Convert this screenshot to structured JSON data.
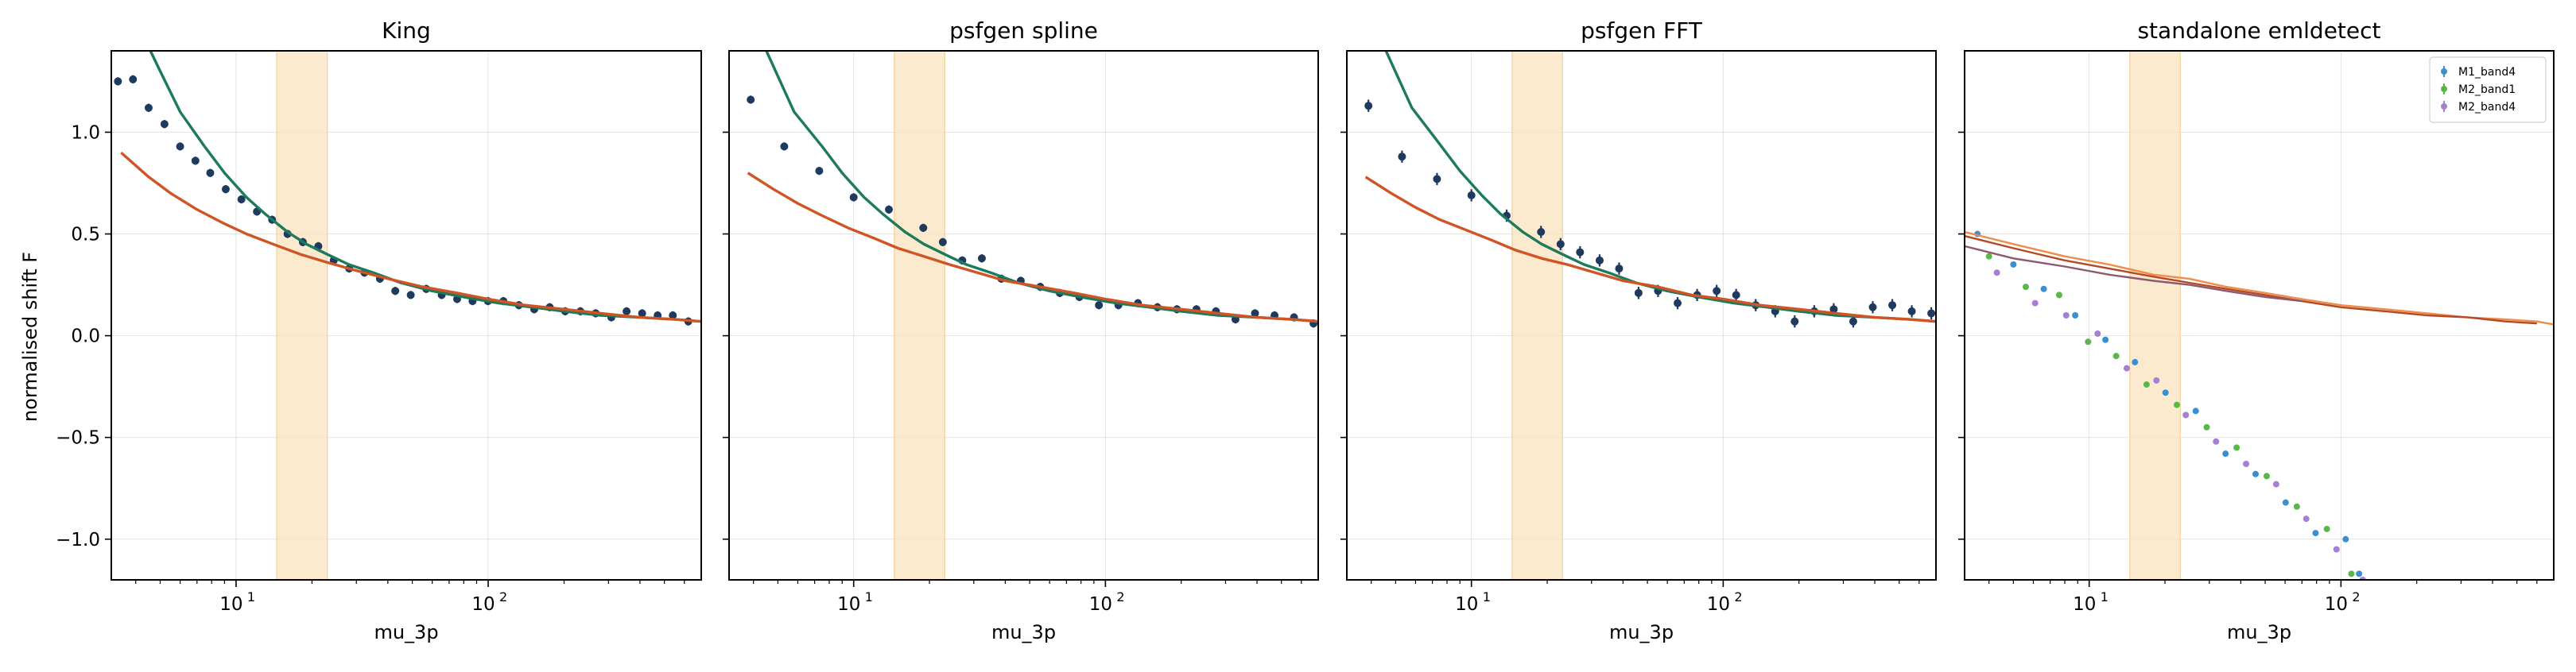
{
  "figure": {
    "ylabel": "normalised shift F",
    "colors": {
      "points": "#1f3a5f",
      "green_curve": "#1d7a5a",
      "orange_curve": "#d05424",
      "band": "#fbe3bf",
      "series_blue": "#3a8fd0",
      "series_green": "#5ab84a",
      "series_purple": "#a57fd1",
      "curve_a": "#f08c4a",
      "curve_b": "#b24a28",
      "curve_c": "#8c5a6e"
    }
  },
  "chart_data": [
    {
      "type": "scatter",
      "title": "King",
      "xlabel": "mu_3p",
      "ylabel": "normalised shift F",
      "xscale": "log",
      "xlim": [
        3.2,
        700
      ],
      "ylim": [
        -1.2,
        1.4
      ],
      "xticks": [
        {
          "value": 10,
          "label": "10",
          "sup": "1"
        },
        {
          "value": 100,
          "label": "10",
          "sup": "2"
        }
      ],
      "yticks": [
        -1.0,
        -0.5,
        0.0,
        0.5,
        1.0
      ],
      "ytick_labels": [
        "−1.0",
        "−0.5",
        "0.0",
        "0.5",
        "1.0"
      ],
      "grid": true,
      "band": [
        14.5,
        23
      ],
      "series": [
        {
          "kind": "points",
          "color": "points",
          "x": [
            3.4,
            3.9,
            4.5,
            5.2,
            6.0,
            6.9,
            7.9,
            9.1,
            10.5,
            12.1,
            13.9,
            16.0,
            18.4,
            21.2,
            24.4,
            28.1,
            32.3,
            37.2,
            42.8,
            49.3,
            56.8,
            65.4,
            75.3,
            86.7,
            99.8,
            114.9,
            132.3,
            152.3,
            175.4,
            202,
            232,
            267,
            308,
            354,
            408,
            470,
            540,
            622
          ],
          "y": [
            1.25,
            1.26,
            1.12,
            1.04,
            0.93,
            0.86,
            0.8,
            0.72,
            0.67,
            0.61,
            0.57,
            0.5,
            0.46,
            0.44,
            0.37,
            0.33,
            0.31,
            0.28,
            0.22,
            0.2,
            0.23,
            0.2,
            0.18,
            0.17,
            0.17,
            0.17,
            0.15,
            0.13,
            0.14,
            0.12,
            0.12,
            0.11,
            0.09,
            0.12,
            0.11,
            0.1,
            0.1,
            0.07
          ],
          "err": 0.02
        },
        {
          "kind": "line",
          "color": "green_curve",
          "x": [
            4.0,
            5.0,
            6.0,
            7.5,
            9.0,
            11,
            13,
            16,
            19,
            23,
            28,
            35,
            45,
            60,
            80,
            110,
            150,
            200,
            280,
            400,
            550,
            700
          ],
          "y": [
            1.55,
            1.3,
            1.1,
            0.93,
            0.8,
            0.68,
            0.6,
            0.51,
            0.45,
            0.4,
            0.35,
            0.31,
            0.26,
            0.22,
            0.19,
            0.16,
            0.14,
            0.12,
            0.1,
            0.09,
            0.08,
            0.07
          ]
        },
        {
          "kind": "line",
          "color": "orange_curve",
          "x": [
            3.5,
            4.5,
            5.5,
            7,
            9,
            11,
            14,
            18,
            23,
            30,
            40,
            55,
            75,
            100,
            140,
            200,
            280,
            400,
            550,
            700
          ],
          "y": [
            0.9,
            0.78,
            0.7,
            0.62,
            0.55,
            0.5,
            0.45,
            0.4,
            0.36,
            0.32,
            0.28,
            0.24,
            0.21,
            0.18,
            0.15,
            0.13,
            0.11,
            0.09,
            0.08,
            0.07
          ]
        }
      ]
    },
    {
      "type": "scatter",
      "title": "psfgen spline",
      "xlabel": "mu_3p",
      "xscale": "log",
      "xlim": [
        3.2,
        700
      ],
      "ylim": [
        -1.2,
        1.4
      ],
      "xticks": [
        {
          "value": 10,
          "label": "10",
          "sup": "1"
        },
        {
          "value": 100,
          "label": "10",
          "sup": "2"
        }
      ],
      "yticks": [
        -1.0,
        -0.5,
        0.0,
        0.5,
        1.0
      ],
      "grid": true,
      "band": [
        14.5,
        23
      ],
      "series": [
        {
          "kind": "points",
          "color": "points",
          "x": [
            3.9,
            5.3,
            7.3,
            10.0,
            13.8,
            18.9,
            22.6,
            27.0,
            32.3,
            38.6,
            46.1,
            55.1,
            65.9,
            78.8,
            94.2,
            112.6,
            134.6,
            160.9,
            192.3,
            229.9,
            274.8,
            328.5,
            392.7,
            469.4,
            561.1,
            670.7
          ],
          "y": [
            1.16,
            0.93,
            0.81,
            0.68,
            0.62,
            0.53,
            0.46,
            0.37,
            0.38,
            0.28,
            0.27,
            0.24,
            0.21,
            0.19,
            0.15,
            0.15,
            0.16,
            0.14,
            0.13,
            0.13,
            0.12,
            0.08,
            0.11,
            0.1,
            0.09,
            0.06
          ],
          "err": 0.02
        },
        {
          "kind": "line",
          "color": "green_curve",
          "x": [
            4.5,
            5.8,
            7.5,
            9.0,
            11,
            13,
            16,
            19,
            23,
            28,
            35,
            45,
            60,
            80,
            110,
            150,
            200,
            280,
            400,
            550,
            700
          ],
          "y": [
            1.4,
            1.1,
            0.93,
            0.8,
            0.68,
            0.6,
            0.51,
            0.45,
            0.4,
            0.35,
            0.31,
            0.26,
            0.22,
            0.19,
            0.16,
            0.14,
            0.12,
            0.1,
            0.09,
            0.08,
            0.07
          ]
        },
        {
          "kind": "line",
          "color": "orange_curve",
          "x": [
            3.8,
            4.8,
            6,
            7.5,
            9.5,
            12,
            15,
            19,
            24,
            31,
            40,
            55,
            75,
            100,
            140,
            200,
            280,
            400,
            550,
            700
          ],
          "y": [
            0.8,
            0.72,
            0.65,
            0.59,
            0.53,
            0.48,
            0.43,
            0.39,
            0.35,
            0.31,
            0.27,
            0.24,
            0.21,
            0.18,
            0.15,
            0.13,
            0.11,
            0.09,
            0.08,
            0.07
          ]
        }
      ]
    },
    {
      "type": "scatter",
      "title": "psfgen FFT",
      "xlabel": "mu_3p",
      "xscale": "log",
      "xlim": [
        3.2,
        700
      ],
      "ylim": [
        -1.2,
        1.4
      ],
      "xticks": [
        {
          "value": 10,
          "label": "10",
          "sup": "1"
        },
        {
          "value": 100,
          "label": "10",
          "sup": "2"
        }
      ],
      "yticks": [
        -1.0,
        -0.5,
        0.0,
        0.5,
        1.0
      ],
      "grid": true,
      "band": [
        14.5,
        23
      ],
      "series": [
        {
          "kind": "points",
          "color": "points",
          "x": [
            3.9,
            5.3,
            7.3,
            10.0,
            13.8,
            18.9,
            22.6,
            27.0,
            32.3,
            38.6,
            46.1,
            55.1,
            65.9,
            78.8,
            94.2,
            112.6,
            134.6,
            160.9,
            192.3,
            229.9,
            274.8,
            328.5,
            392.7,
            469.4,
            561.1,
            670.7
          ],
          "y": [
            1.13,
            0.88,
            0.77,
            0.69,
            0.59,
            0.51,
            0.45,
            0.41,
            0.37,
            0.33,
            0.21,
            0.22,
            0.16,
            0.2,
            0.22,
            0.2,
            0.15,
            0.12,
            0.07,
            0.12,
            0.13,
            0.07,
            0.14,
            0.15,
            0.12,
            0.11
          ],
          "err": 0.03
        },
        {
          "kind": "line",
          "color": "green_curve",
          "x": [
            4.5,
            5.8,
            7.5,
            9.0,
            11,
            13,
            16,
            19,
            23,
            28,
            35,
            45,
            60,
            80,
            110,
            150,
            200,
            280,
            400,
            550,
            700
          ],
          "y": [
            1.42,
            1.12,
            0.94,
            0.81,
            0.69,
            0.6,
            0.51,
            0.45,
            0.4,
            0.35,
            0.31,
            0.26,
            0.22,
            0.19,
            0.16,
            0.14,
            0.12,
            0.1,
            0.09,
            0.08,
            0.07
          ]
        },
        {
          "kind": "line",
          "color": "orange_curve",
          "x": [
            3.8,
            4.8,
            6,
            7.5,
            9.5,
            12,
            15,
            19,
            24,
            31,
            40,
            55,
            75,
            100,
            140,
            200,
            280,
            400,
            550,
            700
          ],
          "y": [
            0.78,
            0.7,
            0.63,
            0.57,
            0.52,
            0.47,
            0.42,
            0.38,
            0.35,
            0.31,
            0.27,
            0.24,
            0.2,
            0.18,
            0.15,
            0.13,
            0.11,
            0.09,
            0.08,
            0.07
          ]
        }
      ]
    },
    {
      "type": "scatter",
      "title": "standalone emldetect",
      "xlabel": "mu_3p",
      "xscale": "log",
      "xlim": [
        3.2,
        700
      ],
      "ylim": [
        -1.2,
        1.4
      ],
      "xticks": [
        {
          "value": 10,
          "label": "10",
          "sup": "1"
        },
        {
          "value": 100,
          "label": "10",
          "sup": "2"
        }
      ],
      "yticks": [
        -1.0,
        -0.5,
        0.0,
        0.5,
        1.0
      ],
      "grid": true,
      "band": [
        14.5,
        23
      ],
      "legend": "top-right",
      "series": [
        {
          "kind": "points",
          "name": "M1_band4",
          "color": "series_blue",
          "x": [
            3.6,
            5.0,
            6.6,
            8.8,
            11.6,
            15.2,
            20.1,
            26.5,
            34.8,
            45.8,
            60.3,
            79.3,
            104.4,
            118
          ],
          "y": [
            0.5,
            0.35,
            0.23,
            0.1,
            -0.02,
            -0.13,
            -0.28,
            -0.37,
            -0.58,
            -0.68,
            -0.82,
            -0.97,
            -1.0,
            -1.17
          ]
        },
        {
          "kind": "points",
          "name": "M2_band1",
          "color": "series_green",
          "x": [
            4.0,
            5.6,
            7.6,
            9.9,
            12.8,
            16.9,
            22.3,
            29.3,
            38.5,
            50.7,
            66.8,
            87.9,
            110
          ],
          "y": [
            0.39,
            0.24,
            0.2,
            -0.03,
            -0.1,
            -0.24,
            -0.34,
            -0.45,
            -0.55,
            -0.69,
            -0.84,
            -0.95,
            -1.17
          ]
        },
        {
          "kind": "points",
          "name": "M2_band4",
          "color": "series_purple",
          "x": [
            4.3,
            6.1,
            8.1,
            10.8,
            14.1,
            18.5,
            24.2,
            31.9,
            42.0,
            55.3,
            72.8,
            96.0,
            122
          ],
          "y": [
            0.31,
            0.16,
            0.1,
            0.01,
            -0.16,
            -0.22,
            -0.39,
            -0.52,
            -0.63,
            -0.73,
            -0.9,
            -1.05,
            -1.2
          ]
        },
        {
          "kind": "line",
          "color": "curve_a",
          "x": [
            3.2,
            5,
            8,
            12,
            18,
            25,
            35,
            50,
            70,
            100,
            150,
            220,
            320,
            450,
            600,
            700
          ],
          "y": [
            0.51,
            0.45,
            0.39,
            0.35,
            0.3,
            0.28,
            0.24,
            0.21,
            0.18,
            0.15,
            0.13,
            0.11,
            0.09,
            0.08,
            0.07,
            0.055
          ]
        },
        {
          "kind": "line",
          "color": "curve_b",
          "x": [
            3.2,
            5,
            8,
            12,
            18,
            25,
            35,
            50,
            70,
            100,
            150,
            220,
            320,
            450,
            600
          ],
          "y": [
            0.49,
            0.43,
            0.37,
            0.33,
            0.29,
            0.26,
            0.23,
            0.2,
            0.17,
            0.14,
            0.12,
            0.1,
            0.09,
            0.07,
            0.06
          ]
        },
        {
          "kind": "line",
          "color": "curve_c",
          "x": [
            3.2,
            5,
            8,
            12,
            18,
            25,
            35,
            50,
            70
          ],
          "y": [
            0.44,
            0.38,
            0.34,
            0.3,
            0.27,
            0.25,
            0.22,
            0.19,
            0.17
          ]
        }
      ]
    }
  ]
}
